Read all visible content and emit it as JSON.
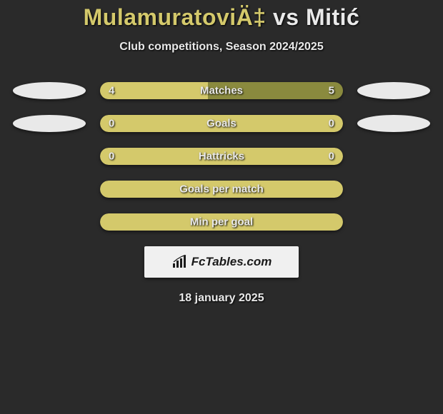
{
  "background_color": "#2a2a2a",
  "header": {
    "player1": "MulamuratoviÄ‡",
    "vs": "vs",
    "player2": "Mitić",
    "player1_color": "#d4c96b",
    "player2_color": "#e9e9e9",
    "vs_color": "#e9e9e9",
    "subtitle": "Club competitions, Season 2024/2025",
    "title_fontsize": 32,
    "subtitle_fontsize": 16
  },
  "colors": {
    "track_bg": "#8a8a3e",
    "fill_accent": "#d4c96b",
    "ellipse": "#e9e9e9",
    "text": "#e9e9e9",
    "text_shadow": "#000000"
  },
  "bar_style": {
    "track_width": 340,
    "track_height": 24,
    "border_radius": 12,
    "label_fontsize": 15
  },
  "rows": [
    {
      "label": "Matches",
      "left_value": "4",
      "right_value": "5",
      "left_ellipse": true,
      "right_ellipse": true,
      "fill_mode": "split",
      "left_fill_pct": 44.44,
      "left_color": "#d4c96b",
      "right_color": "#8a8a3e"
    },
    {
      "label": "Goals",
      "left_value": "0",
      "right_value": "0",
      "left_ellipse": true,
      "right_ellipse": true,
      "fill_mode": "full",
      "fill_color": "#d4c96b"
    },
    {
      "label": "Hattricks",
      "left_value": "0",
      "right_value": "0",
      "left_ellipse": false,
      "right_ellipse": false,
      "fill_mode": "full",
      "fill_color": "#d4c96b"
    },
    {
      "label": "Goals per match",
      "left_value": "",
      "right_value": "",
      "left_ellipse": false,
      "right_ellipse": false,
      "fill_mode": "full",
      "fill_color": "#d4c96b"
    },
    {
      "label": "Min per goal",
      "left_value": "",
      "right_value": "",
      "left_ellipse": false,
      "right_ellipse": false,
      "fill_mode": "full",
      "fill_color": "#d4c96b"
    }
  ],
  "footer": {
    "brand": "FcTables.com",
    "date": "18 january 2025",
    "brand_fontsize": 17,
    "date_fontsize": 16,
    "badge_bg": "#f0f0f0",
    "brand_color": "#1a1a1a"
  }
}
